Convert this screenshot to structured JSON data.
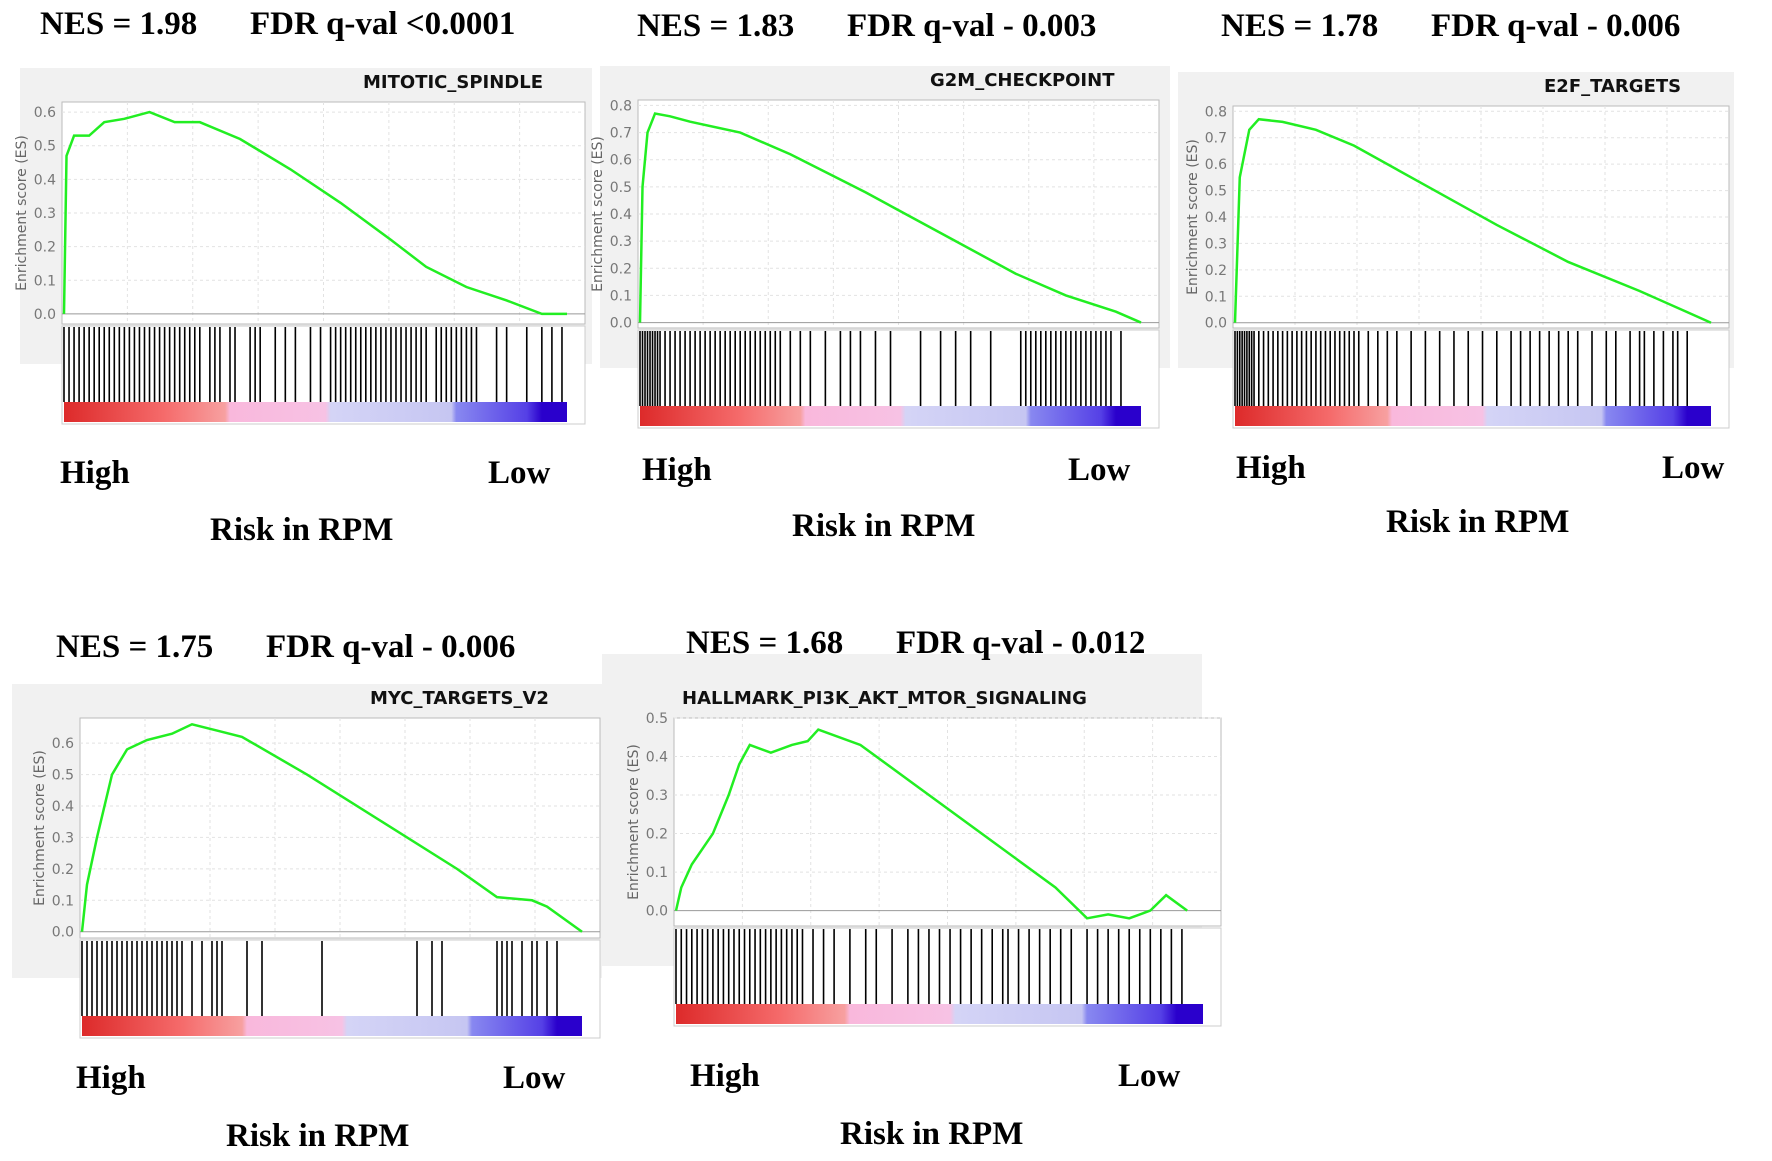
{
  "x_labels": {
    "high": "High",
    "low": "Low",
    "axis": "Risk in RPM"
  },
  "ylabel": "Enrichment score (ES)",
  "colors": {
    "curve": "#22ee22",
    "hit": "#000000"
  },
  "chart_data": [
    {
      "type": "line",
      "nes": "NES = 1.98",
      "fdr": "FDR q-val <0.0001",
      "title": "MITOTIC_SPINDLE",
      "ylim": [
        -0.03,
        0.63
      ],
      "yticks": [
        0.0,
        0.1,
        0.2,
        0.3,
        0.4,
        0.5,
        0.6
      ],
      "x": [
        0,
        0.5,
        2,
        5,
        8,
        12,
        17,
        22,
        27,
        35,
        45,
        55,
        65,
        72,
        80,
        88,
        95,
        100
      ],
      "y": [
        0,
        0.47,
        0.53,
        0.53,
        0.57,
        0.58,
        0.6,
        0.57,
        0.57,
        0.52,
        0.43,
        0.33,
        0.22,
        0.14,
        0.08,
        0.04,
        0.0,
        0.0
      ],
      "hits": [
        0,
        1,
        2,
        3,
        4,
        5,
        6,
        7,
        8,
        9,
        10,
        11,
        12,
        13,
        14,
        15,
        16,
        17,
        18,
        19,
        20,
        21,
        22,
        23,
        24,
        25,
        26,
        27,
        29,
        30,
        31,
        33,
        34,
        37,
        38,
        39,
        42,
        44,
        46,
        49,
        51,
        53,
        54,
        55,
        56,
        57,
        58,
        59,
        60,
        61,
        62,
        63,
        64,
        65,
        66,
        67,
        68,
        69,
        70,
        71,
        72,
        74,
        75,
        76,
        77,
        78,
        79,
        80,
        81,
        82,
        86,
        88,
        92,
        95,
        97,
        99
      ]
    },
    {
      "type": "line",
      "nes": "NES = 1.83",
      "fdr": "FDR q-val - 0.003",
      "title": "G2M_CHECKPOINT",
      "ylim": [
        -0.02,
        0.82
      ],
      "yticks": [
        0.0,
        0.1,
        0.2,
        0.3,
        0.4,
        0.5,
        0.6,
        0.7,
        0.8
      ],
      "x": [
        0,
        0.5,
        1.5,
        3,
        6,
        10,
        20,
        30,
        45,
        60,
        75,
        85,
        95,
        100
      ],
      "y": [
        0,
        0.5,
        0.7,
        0.77,
        0.76,
        0.74,
        0.7,
        0.62,
        0.48,
        0.33,
        0.18,
        0.1,
        0.04,
        0
      ],
      "hits": [
        0,
        0.5,
        1,
        1.5,
        2,
        2.5,
        3,
        3.5,
        4,
        5,
        6,
        7,
        8,
        9,
        10,
        11,
        12,
        13,
        14,
        15,
        16,
        17,
        18,
        19,
        20,
        21,
        22,
        23,
        24,
        25,
        26,
        27,
        28,
        30,
        32,
        34,
        37,
        40,
        42,
        44,
        47,
        50,
        56,
        60,
        63,
        66,
        70,
        76,
        77,
        78,
        79,
        80,
        81,
        82,
        83,
        84,
        85,
        86,
        87,
        88,
        89,
        90,
        91,
        92,
        93,
        94,
        96
      ]
    },
    {
      "type": "line",
      "nes": "NES = 1.78",
      "fdr": "FDR q-val - 0.006",
      "title": "E2F_TARGETS",
      "ylim": [
        -0.02,
        0.82
      ],
      "yticks": [
        0.0,
        0.1,
        0.2,
        0.3,
        0.4,
        0.5,
        0.6,
        0.7,
        0.8
      ],
      "x": [
        0,
        1,
        3,
        5,
        10,
        17,
        25,
        40,
        55,
        70,
        85,
        95,
        100
      ],
      "y": [
        0,
        0.55,
        0.73,
        0.77,
        0.76,
        0.73,
        0.67,
        0.52,
        0.37,
        0.23,
        0.12,
        0.04,
        0
      ],
      "hits": [
        0,
        0.5,
        1,
        1.5,
        2,
        2.5,
        3,
        3.5,
        4,
        5,
        6,
        7,
        8,
        9,
        10,
        11,
        12,
        13,
        14,
        15,
        16,
        17,
        18,
        19,
        20,
        21,
        22,
        23,
        24,
        25,
        26,
        28,
        30,
        32,
        34,
        37,
        40,
        43,
        46,
        49,
        52,
        55,
        58,
        60,
        62,
        64,
        66,
        68,
        70,
        72,
        75,
        78,
        80,
        83,
        85,
        86,
        88,
        90,
        92,
        93,
        95
      ]
    },
    {
      "type": "line",
      "nes": "NES = 1.75",
      "fdr": "FDR q-val - 0.006",
      "title": "MYC_TARGETS_V2",
      "ylim": [
        -0.02,
        0.68
      ],
      "yticks": [
        0.0,
        0.1,
        0.2,
        0.3,
        0.4,
        0.5,
        0.6
      ],
      "x": [
        0,
        1,
        3,
        6,
        9,
        13,
        18,
        22,
        27,
        32,
        45,
        60,
        75,
        83,
        90,
        93,
        100
      ],
      "y": [
        0,
        0.15,
        0.3,
        0.5,
        0.58,
        0.61,
        0.63,
        0.66,
        0.64,
        0.62,
        0.5,
        0.35,
        0.2,
        0.11,
        0.1,
        0.08,
        0
      ],
      "hits": [
        0,
        1,
        2,
        3,
        4,
        5,
        6,
        7,
        8,
        9,
        10,
        11,
        12,
        13,
        14,
        15,
        16,
        17,
        18,
        19,
        20,
        22,
        24,
        26,
        27,
        28,
        33,
        36,
        48,
        67,
        70,
        72,
        83,
        84,
        85,
        86,
        88,
        90,
        91,
        93,
        95
      ]
    },
    {
      "type": "line",
      "nes": "NES = 1.68",
      "fdr": "FDR q-val - 0.012",
      "title": "HALLMARK_PI3K_AKT_MTOR_SIGNALING",
      "ylim": [
        -0.04,
        0.5
      ],
      "yticks": [
        0.0,
        0.1,
        0.2,
        0.3,
        0.4,
        0.5
      ],
      "x": [
        0,
        1,
        3,
        7,
        10,
        12,
        14,
        18,
        22,
        25,
        27,
        35,
        45,
        60,
        72,
        78,
        82,
        86,
        90,
        93,
        97
      ],
      "y": [
        0,
        0.06,
        0.12,
        0.2,
        0.3,
        0.38,
        0.43,
        0.41,
        0.43,
        0.44,
        0.47,
        0.43,
        0.33,
        0.18,
        0.06,
        -0.02,
        -0.01,
        -0.02,
        0.0,
        0.04,
        0.0
      ],
      "hits": [
        0,
        1,
        2,
        3,
        4,
        5,
        6,
        7,
        8,
        9,
        10,
        11,
        12,
        13,
        14,
        15,
        16,
        17,
        18,
        19,
        20,
        21,
        22,
        23,
        24,
        26,
        28,
        30,
        33,
        36,
        38,
        41,
        44,
        46,
        48,
        50,
        52,
        54,
        56,
        58,
        60,
        62,
        63,
        65,
        67,
        69,
        71,
        73,
        75,
        78,
        80,
        82,
        84,
        86,
        88,
        90,
        92,
        94,
        96
      ]
    }
  ]
}
